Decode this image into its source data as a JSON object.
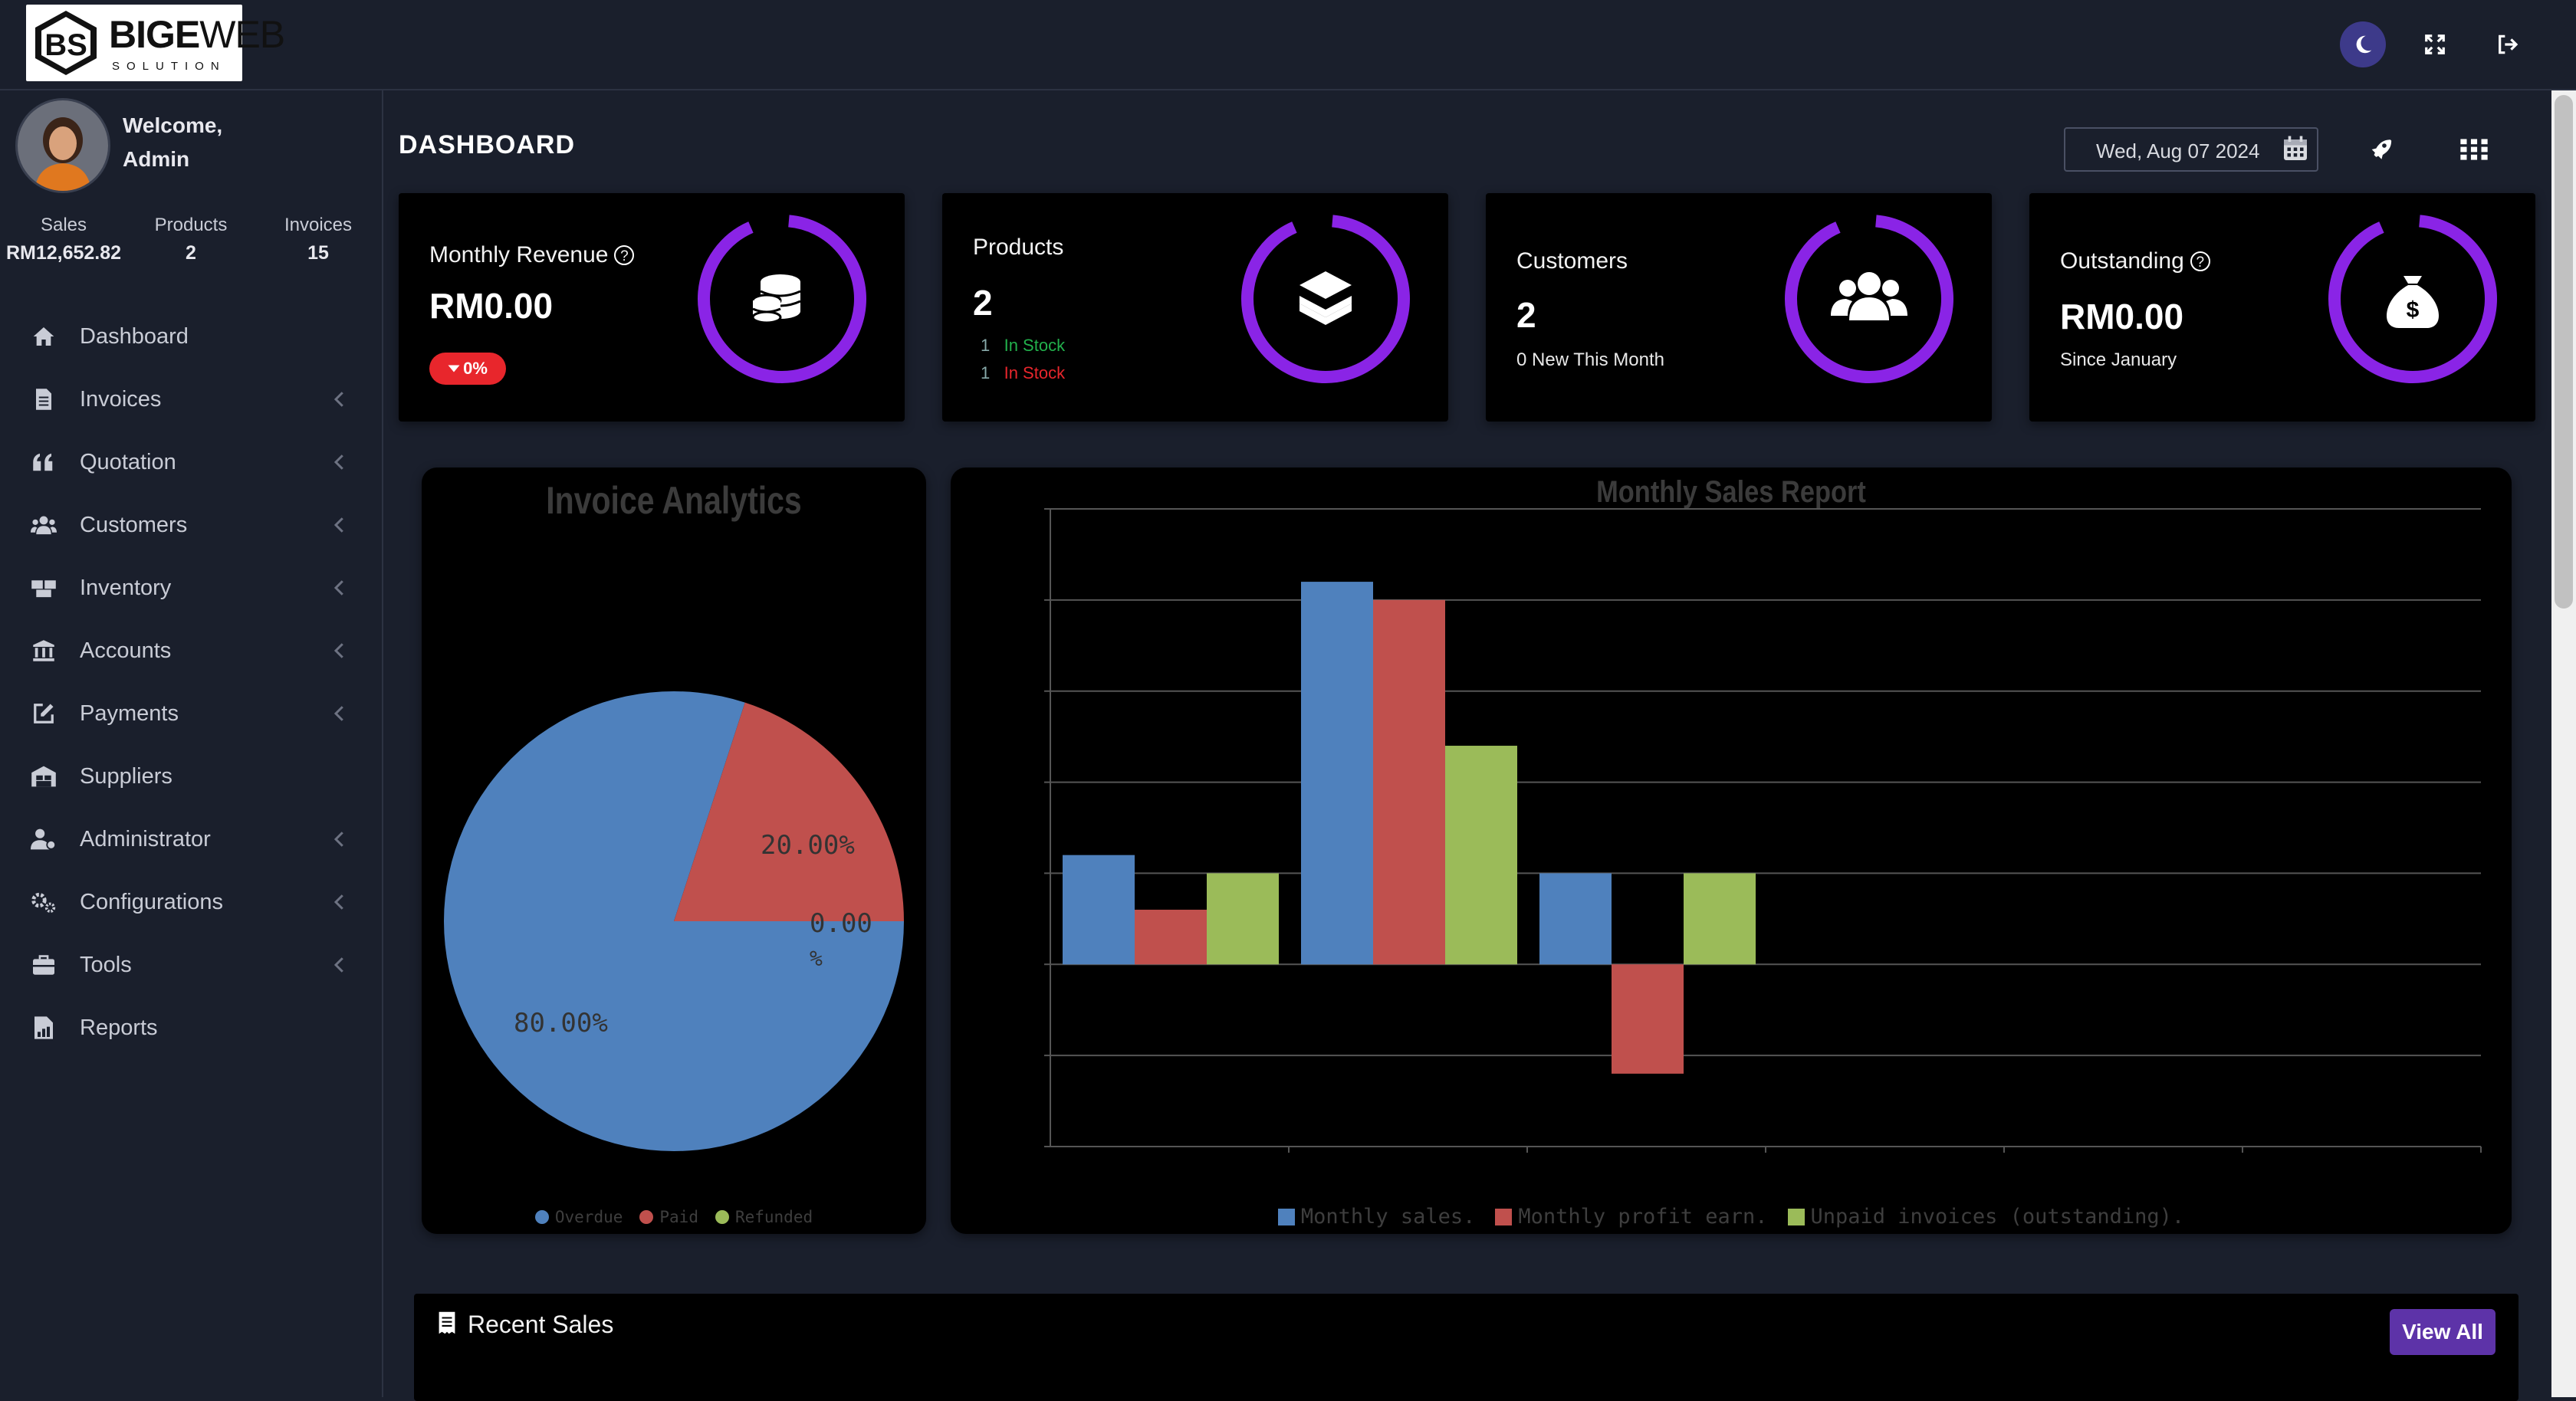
{
  "brand": {
    "name_bold": "BIGE",
    "name_light": "WEB",
    "tagline": "SOLUTION"
  },
  "user": {
    "greeting": "Welcome,",
    "name": "Admin"
  },
  "stats": [
    {
      "label": "Sales",
      "value": "RM12,652.82"
    },
    {
      "label": "Products",
      "value": "2"
    },
    {
      "label": "Invoices",
      "value": "15"
    }
  ],
  "menu": [
    {
      "label": "Dashboard",
      "icon": "home-icon",
      "has_submenu": false
    },
    {
      "label": "Invoices",
      "icon": "file-icon",
      "has_submenu": true
    },
    {
      "label": "Quotation",
      "icon": "quote-icon",
      "has_submenu": true
    },
    {
      "label": "Customers",
      "icon": "users-icon",
      "has_submenu": true
    },
    {
      "label": "Inventory",
      "icon": "boxes-icon",
      "has_submenu": true
    },
    {
      "label": "Accounts",
      "icon": "bank-icon",
      "has_submenu": true
    },
    {
      "label": "Payments",
      "icon": "edit-icon",
      "has_submenu": true
    },
    {
      "label": "Suppliers",
      "icon": "warehouse-icon",
      "has_submenu": false
    },
    {
      "label": "Administrator",
      "icon": "user-gear-icon",
      "has_submenu": true
    },
    {
      "label": "Configurations",
      "icon": "gears-icon",
      "has_submenu": true
    },
    {
      "label": "Tools",
      "icon": "toolbox-icon",
      "has_submenu": true
    },
    {
      "label": "Reports",
      "icon": "report-icon",
      "has_submenu": false
    }
  ],
  "page": {
    "title": "DASHBOARD",
    "date": "Wed, Aug 07 2024"
  },
  "cards": {
    "revenue": {
      "title": "Monthly Revenue",
      "value": "RM0.00",
      "badge": "0%"
    },
    "products": {
      "title": "Products",
      "value": "2",
      "stock_lines": [
        {
          "count": "1",
          "label": "In Stock"
        },
        {
          "count": "1",
          "label": "In Stock"
        }
      ]
    },
    "customers": {
      "title": "Customers",
      "value": "2",
      "sub": "0 New This Month"
    },
    "outstanding": {
      "title": "Outstanding",
      "value": "RM0.00",
      "sub": "Since January"
    }
  },
  "colors": {
    "accent": "#8a24e6",
    "stock_green": "#22b14c",
    "stock_red": "#e8262c",
    "bar_blue": "#4f81bd",
    "bar_red": "#c0504d",
    "bar_green": "#9bbb59"
  },
  "chart_data": [
    {
      "type": "pie",
      "title": "Invoice Analytics",
      "labels": [
        "Overdue",
        "Paid",
        "Refunded"
      ],
      "values": [
        80.0,
        20.0,
        0.0
      ],
      "value_labels": [
        "80.00%",
        "20.00%",
        "0.00 %"
      ],
      "colors": [
        "#4f81bd",
        "#c0504d",
        "#9bbb59"
      ],
      "legend": "bottom"
    },
    {
      "type": "bar",
      "title": "Monthly Sales Report",
      "groups": 6,
      "series": [
        {
          "name": "Monthly sales.",
          "values": [
            1.2,
            4.2,
            1.0,
            null,
            null,
            null
          ]
        },
        {
          "name": "Monthly profit earn.",
          "values": [
            0.6,
            4.0,
            -1.2,
            null,
            null,
            null
          ]
        },
        {
          "name": "Unpaid invoices (outstanding).",
          "values": [
            1.0,
            2.4,
            1.0,
            null,
            null,
            null
          ]
        }
      ],
      "ylim": [
        -2,
        5
      ],
      "grid": true,
      "legend": "bottom"
    }
  ],
  "recent": {
    "title": "Recent Sales",
    "button": "View All"
  }
}
